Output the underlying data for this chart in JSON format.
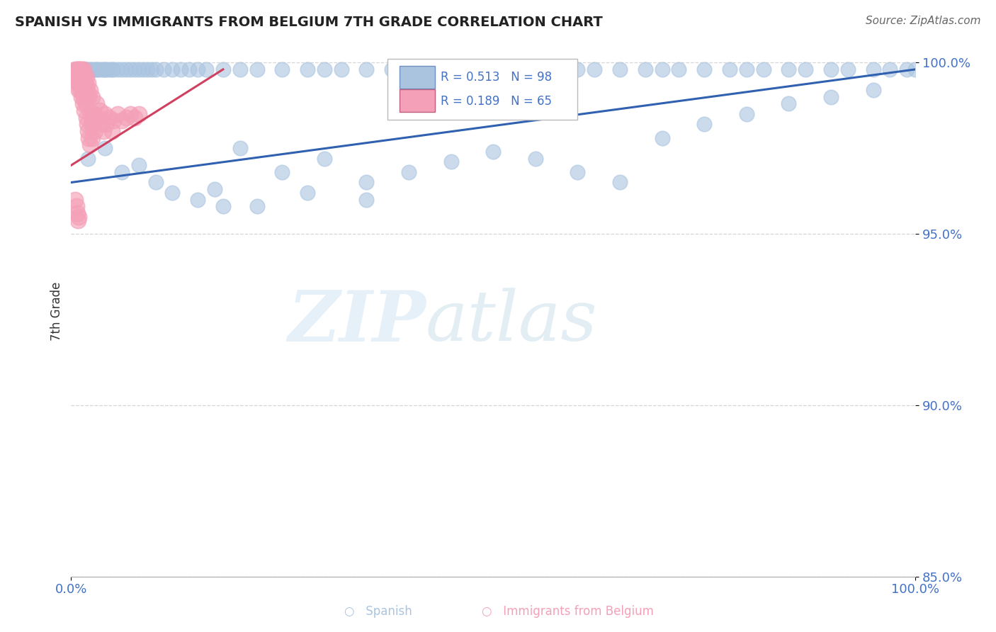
{
  "title": "SPANISH VS IMMIGRANTS FROM BELGIUM 7TH GRADE CORRELATION CHART",
  "source": "Source: ZipAtlas.com",
  "ylabel": "7th Grade",
  "xlim": [
    0.0,
    1.0
  ],
  "ymin": 0.85,
  "ymax": 1.005,
  "x_tick_labels": [
    "0.0%",
    "100.0%"
  ],
  "x_tick_positions": [
    0.0,
    1.0
  ],
  "y_tick_labels": [
    "85.0%",
    "90.0%",
    "95.0%",
    "100.0%"
  ],
  "y_tick_positions": [
    0.85,
    0.9,
    0.95,
    1.0
  ],
  "legend_blue_label": "Spanish",
  "legend_pink_label": "Immigrants from Belgium",
  "R_blue": 0.513,
  "N_blue": 98,
  "R_pink": 0.189,
  "N_pink": 65,
  "blue_color": "#aac4e0",
  "pink_color": "#f4a0b8",
  "blue_line_color": "#3060b0",
  "pink_line_color": "#d04060",
  "blue_line_x": [
    0.0,
    1.0
  ],
  "blue_line_y": [
    0.965,
    0.998
  ],
  "pink_line_x": [
    0.0,
    0.18
  ],
  "pink_line_y": [
    0.97,
    0.998
  ],
  "blue_scatter_x": [
    0.005,
    0.008,
    0.01,
    0.012,
    0.015,
    0.018,
    0.02,
    0.022,
    0.025,
    0.028,
    0.03,
    0.032,
    0.035,
    0.038,
    0.04,
    0.042,
    0.045,
    0.048,
    0.05,
    0.055,
    0.06,
    0.065,
    0.07,
    0.075,
    0.08,
    0.085,
    0.09,
    0.095,
    0.1,
    0.11,
    0.12,
    0.13,
    0.14,
    0.15,
    0.16,
    0.18,
    0.2,
    0.22,
    0.25,
    0.28,
    0.3,
    0.32,
    0.35,
    0.38,
    0.4,
    0.42,
    0.45,
    0.48,
    0.5,
    0.52,
    0.55,
    0.58,
    0.6,
    0.62,
    0.65,
    0.68,
    0.7,
    0.72,
    0.75,
    0.78,
    0.8,
    0.82,
    0.85,
    0.87,
    0.9,
    0.92,
    0.95,
    0.97,
    0.99,
    1.0,
    0.02,
    0.04,
    0.06,
    0.08,
    0.1,
    0.12,
    0.15,
    0.18,
    0.2,
    0.25,
    0.3,
    0.35,
    0.4,
    0.45,
    0.5,
    0.55,
    0.6,
    0.65,
    0.7,
    0.75,
    0.8,
    0.85,
    0.9,
    0.95,
    0.35,
    0.28,
    0.22,
    0.17
  ],
  "blue_scatter_y": [
    0.998,
    0.998,
    0.998,
    0.998,
    0.998,
    0.998,
    0.998,
    0.998,
    0.998,
    0.998,
    0.998,
    0.998,
    0.998,
    0.998,
    0.998,
    0.998,
    0.998,
    0.998,
    0.998,
    0.998,
    0.998,
    0.998,
    0.998,
    0.998,
    0.998,
    0.998,
    0.998,
    0.998,
    0.998,
    0.998,
    0.998,
    0.998,
    0.998,
    0.998,
    0.998,
    0.998,
    0.998,
    0.998,
    0.998,
    0.998,
    0.998,
    0.998,
    0.998,
    0.998,
    0.998,
    0.998,
    0.998,
    0.998,
    0.998,
    0.998,
    0.998,
    0.998,
    0.998,
    0.998,
    0.998,
    0.998,
    0.998,
    0.998,
    0.998,
    0.998,
    0.998,
    0.998,
    0.998,
    0.998,
    0.998,
    0.998,
    0.998,
    0.998,
    0.998,
    0.998,
    0.972,
    0.975,
    0.968,
    0.97,
    0.965,
    0.962,
    0.96,
    0.958,
    0.975,
    0.968,
    0.972,
    0.965,
    0.968,
    0.971,
    0.974,
    0.972,
    0.968,
    0.965,
    0.978,
    0.982,
    0.985,
    0.988,
    0.99,
    0.992,
    0.96,
    0.962,
    0.958,
    0.963
  ],
  "pink_scatter_x": [
    0.005,
    0.005,
    0.007,
    0.007,
    0.008,
    0.008,
    0.009,
    0.009,
    0.01,
    0.01,
    0.01,
    0.011,
    0.011,
    0.012,
    0.012,
    0.013,
    0.013,
    0.013,
    0.014,
    0.014,
    0.015,
    0.015,
    0.015,
    0.016,
    0.016,
    0.017,
    0.017,
    0.018,
    0.018,
    0.019,
    0.019,
    0.02,
    0.02,
    0.021,
    0.021,
    0.022,
    0.022,
    0.023,
    0.024,
    0.025,
    0.025,
    0.026,
    0.027,
    0.028,
    0.03,
    0.032,
    0.034,
    0.036,
    0.038,
    0.04,
    0.042,
    0.045,
    0.048,
    0.05,
    0.055,
    0.06,
    0.065,
    0.07,
    0.075,
    0.08,
    0.005,
    0.006,
    0.007,
    0.008,
    0.009
  ],
  "pink_scatter_y": [
    0.998,
    0.996,
    0.998,
    0.994,
    0.998,
    0.996,
    0.994,
    0.992,
    0.998,
    0.996,
    0.994,
    0.998,
    0.992,
    0.996,
    0.99,
    0.998,
    0.995,
    0.992,
    0.996,
    0.988,
    0.998,
    0.994,
    0.99,
    0.996,
    0.986,
    0.994,
    0.988,
    0.996,
    0.984,
    0.992,
    0.982,
    0.994,
    0.98,
    0.99,
    0.978,
    0.992,
    0.976,
    0.985,
    0.982,
    0.99,
    0.978,
    0.982,
    0.985,
    0.98,
    0.988,
    0.984,
    0.986,
    0.982,
    0.98,
    0.985,
    0.982,
    0.984,
    0.98,
    0.983,
    0.985,
    0.983,
    0.984,
    0.985,
    0.984,
    0.985,
    0.96,
    0.958,
    0.956,
    0.954,
    0.955
  ]
}
